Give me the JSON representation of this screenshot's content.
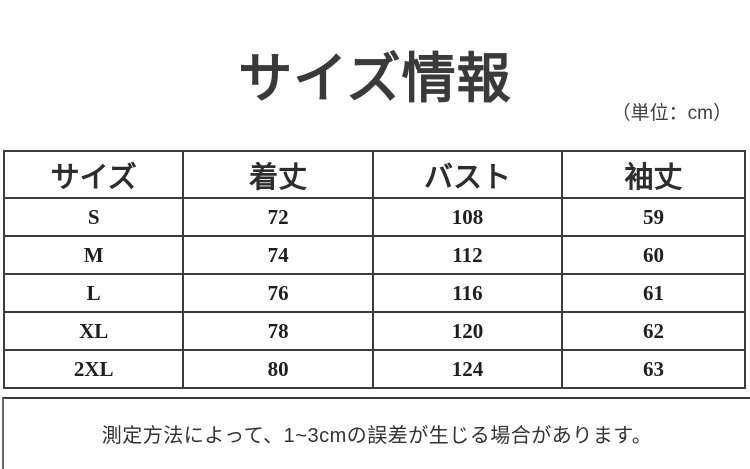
{
  "header": {
    "title": "サイズ情報",
    "unit": "（単位：cm）"
  },
  "table": {
    "columns": [
      "サイズ",
      "着丈",
      "バスト",
      "袖丈"
    ],
    "rows": [
      [
        "S",
        "72",
        "108",
        "59"
      ],
      [
        "M",
        "74",
        "112",
        "60"
      ],
      [
        "L",
        "76",
        "116",
        "61"
      ],
      [
        "XL",
        "78",
        "120",
        "62"
      ],
      [
        "2XL",
        "80",
        "124",
        "63"
      ]
    ]
  },
  "note": "測定方法によって、1~3cmの誤差が生じる場合があります。",
  "colors": {
    "text_primary": "#2d2d2d",
    "border": "#3c3c3c",
    "background": "#ffffff"
  }
}
